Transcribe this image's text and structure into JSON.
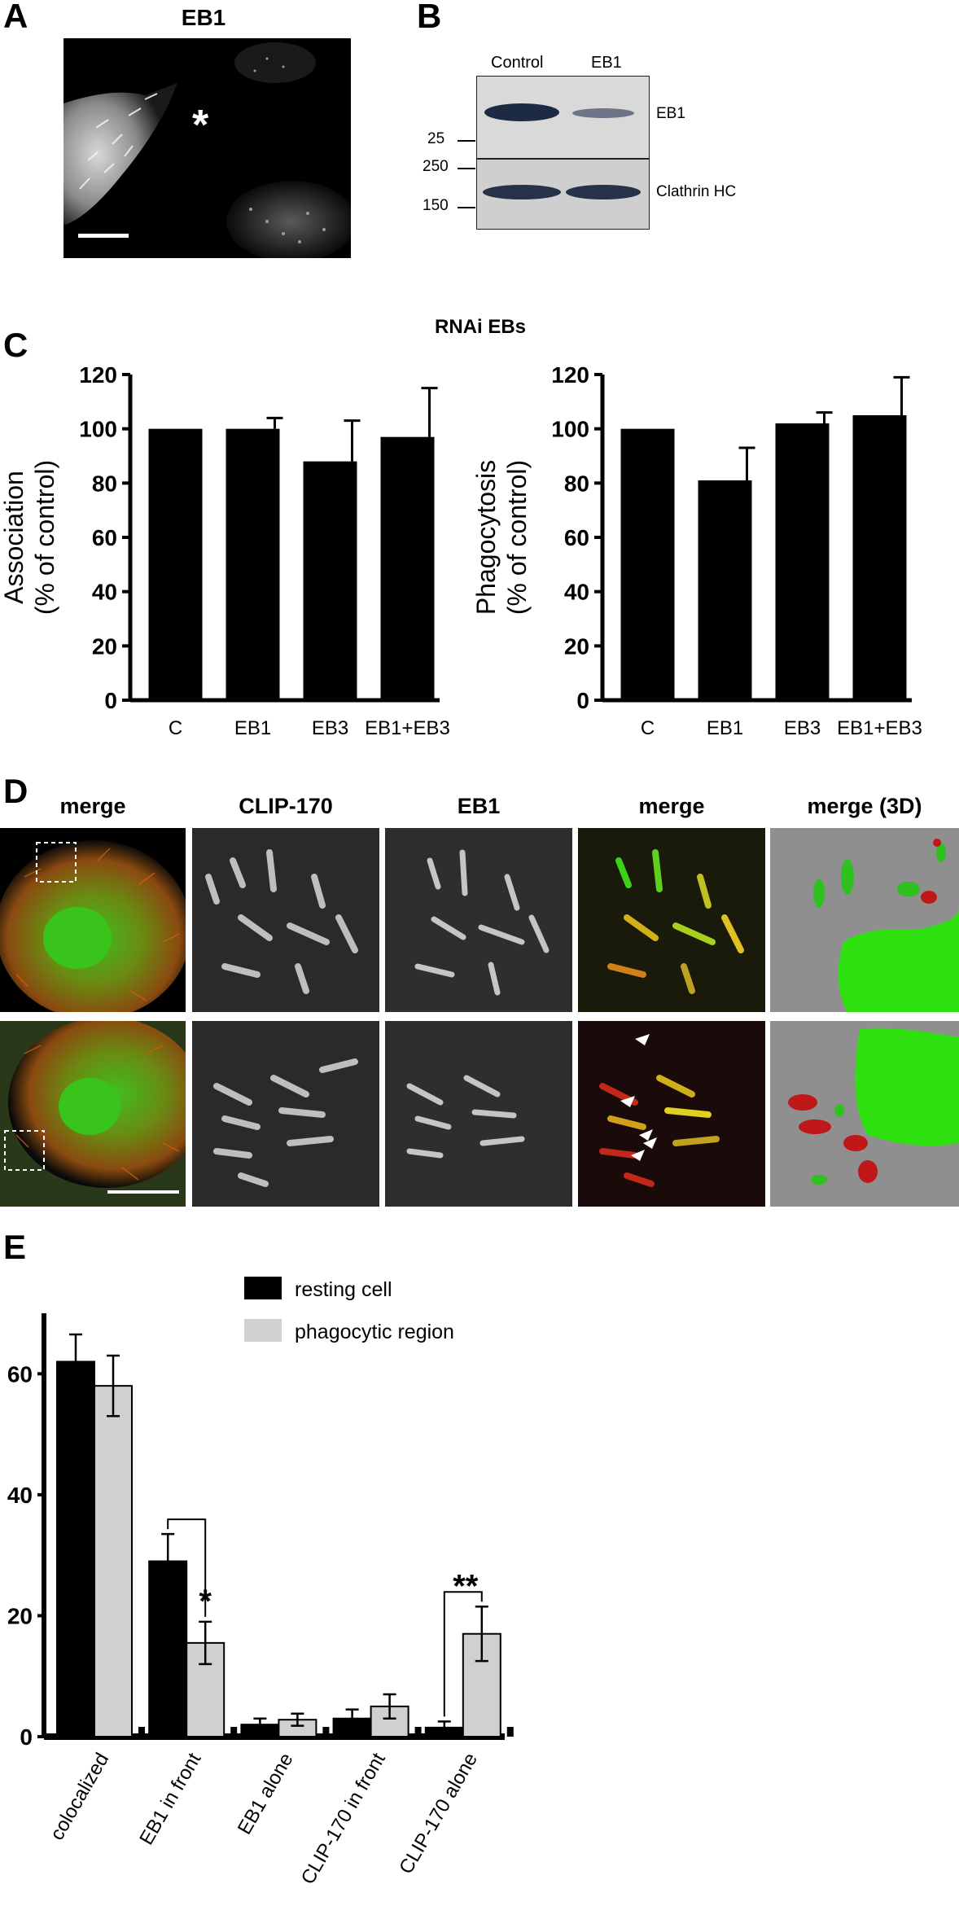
{
  "panels": {
    "a": "A",
    "b": "B",
    "c": "C",
    "d": "D",
    "e": "E"
  },
  "panel_a": {
    "title": "EB1",
    "asterisk": "*"
  },
  "panel_b": {
    "lanes": [
      "Control",
      "EB1"
    ],
    "bands": [
      "EB1",
      "Clathrin HC"
    ],
    "markers": [
      "25",
      "250",
      "150"
    ]
  },
  "panel_d": {
    "headers": [
      "merge",
      "CLIP-170",
      "EB1",
      "merge",
      "merge (3D)"
    ]
  },
  "chart_data": [
    {
      "type": "bar",
      "title": "RNAi EBs",
      "categories": [
        "C",
        "EB1",
        "EB3",
        "EB1+EB3"
      ],
      "values": [
        100,
        100,
        88,
        97
      ],
      "errors": [
        0,
        4,
        15,
        18
      ],
      "ylabel": [
        "Association",
        "(% of control)"
      ],
      "ylim": [
        0,
        120
      ],
      "yticks": [
        "0",
        "20",
        "40",
        "60",
        "80",
        "100",
        "120"
      ]
    },
    {
      "type": "bar",
      "categories": [
        "C",
        "EB1",
        "EB3",
        "EB1+EB3"
      ],
      "values": [
        100,
        81,
        102,
        105
      ],
      "errors": [
        0,
        12,
        4,
        14
      ],
      "ylabel": [
        "Phagocytosis",
        "(% of control)"
      ],
      "ylim": [
        0,
        120
      ],
      "yticks": [
        "0",
        "20",
        "40",
        "60",
        "80",
        "100",
        "120"
      ]
    },
    {
      "type": "bar",
      "categories": [
        "colocalized",
        "EB1 in front",
        "EB1 alone",
        "CLIP-170 in front",
        "CLIP-170 alone"
      ],
      "series": [
        {
          "name": "resting cell",
          "color": "#000000",
          "values": [
            62,
            29,
            2,
            3,
            1.5
          ],
          "errors": [
            4.5,
            4.5,
            1,
            1.5,
            1
          ]
        },
        {
          "name": "phagocytic region",
          "color": "#d0d0d0",
          "values": [
            58,
            15.5,
            2.8,
            5,
            17
          ],
          "errors": [
            5,
            3.5,
            1,
            2,
            4.5
          ]
        }
      ],
      "ylim": [
        0,
        70
      ],
      "yticks": [
        "0",
        "20",
        "40",
        "60"
      ],
      "significance": [
        {
          "category": "EB1 in front",
          "label": "*"
        },
        {
          "category": "CLIP-170 alone",
          "label": "**"
        }
      ],
      "legend_position": "top-right"
    }
  ]
}
